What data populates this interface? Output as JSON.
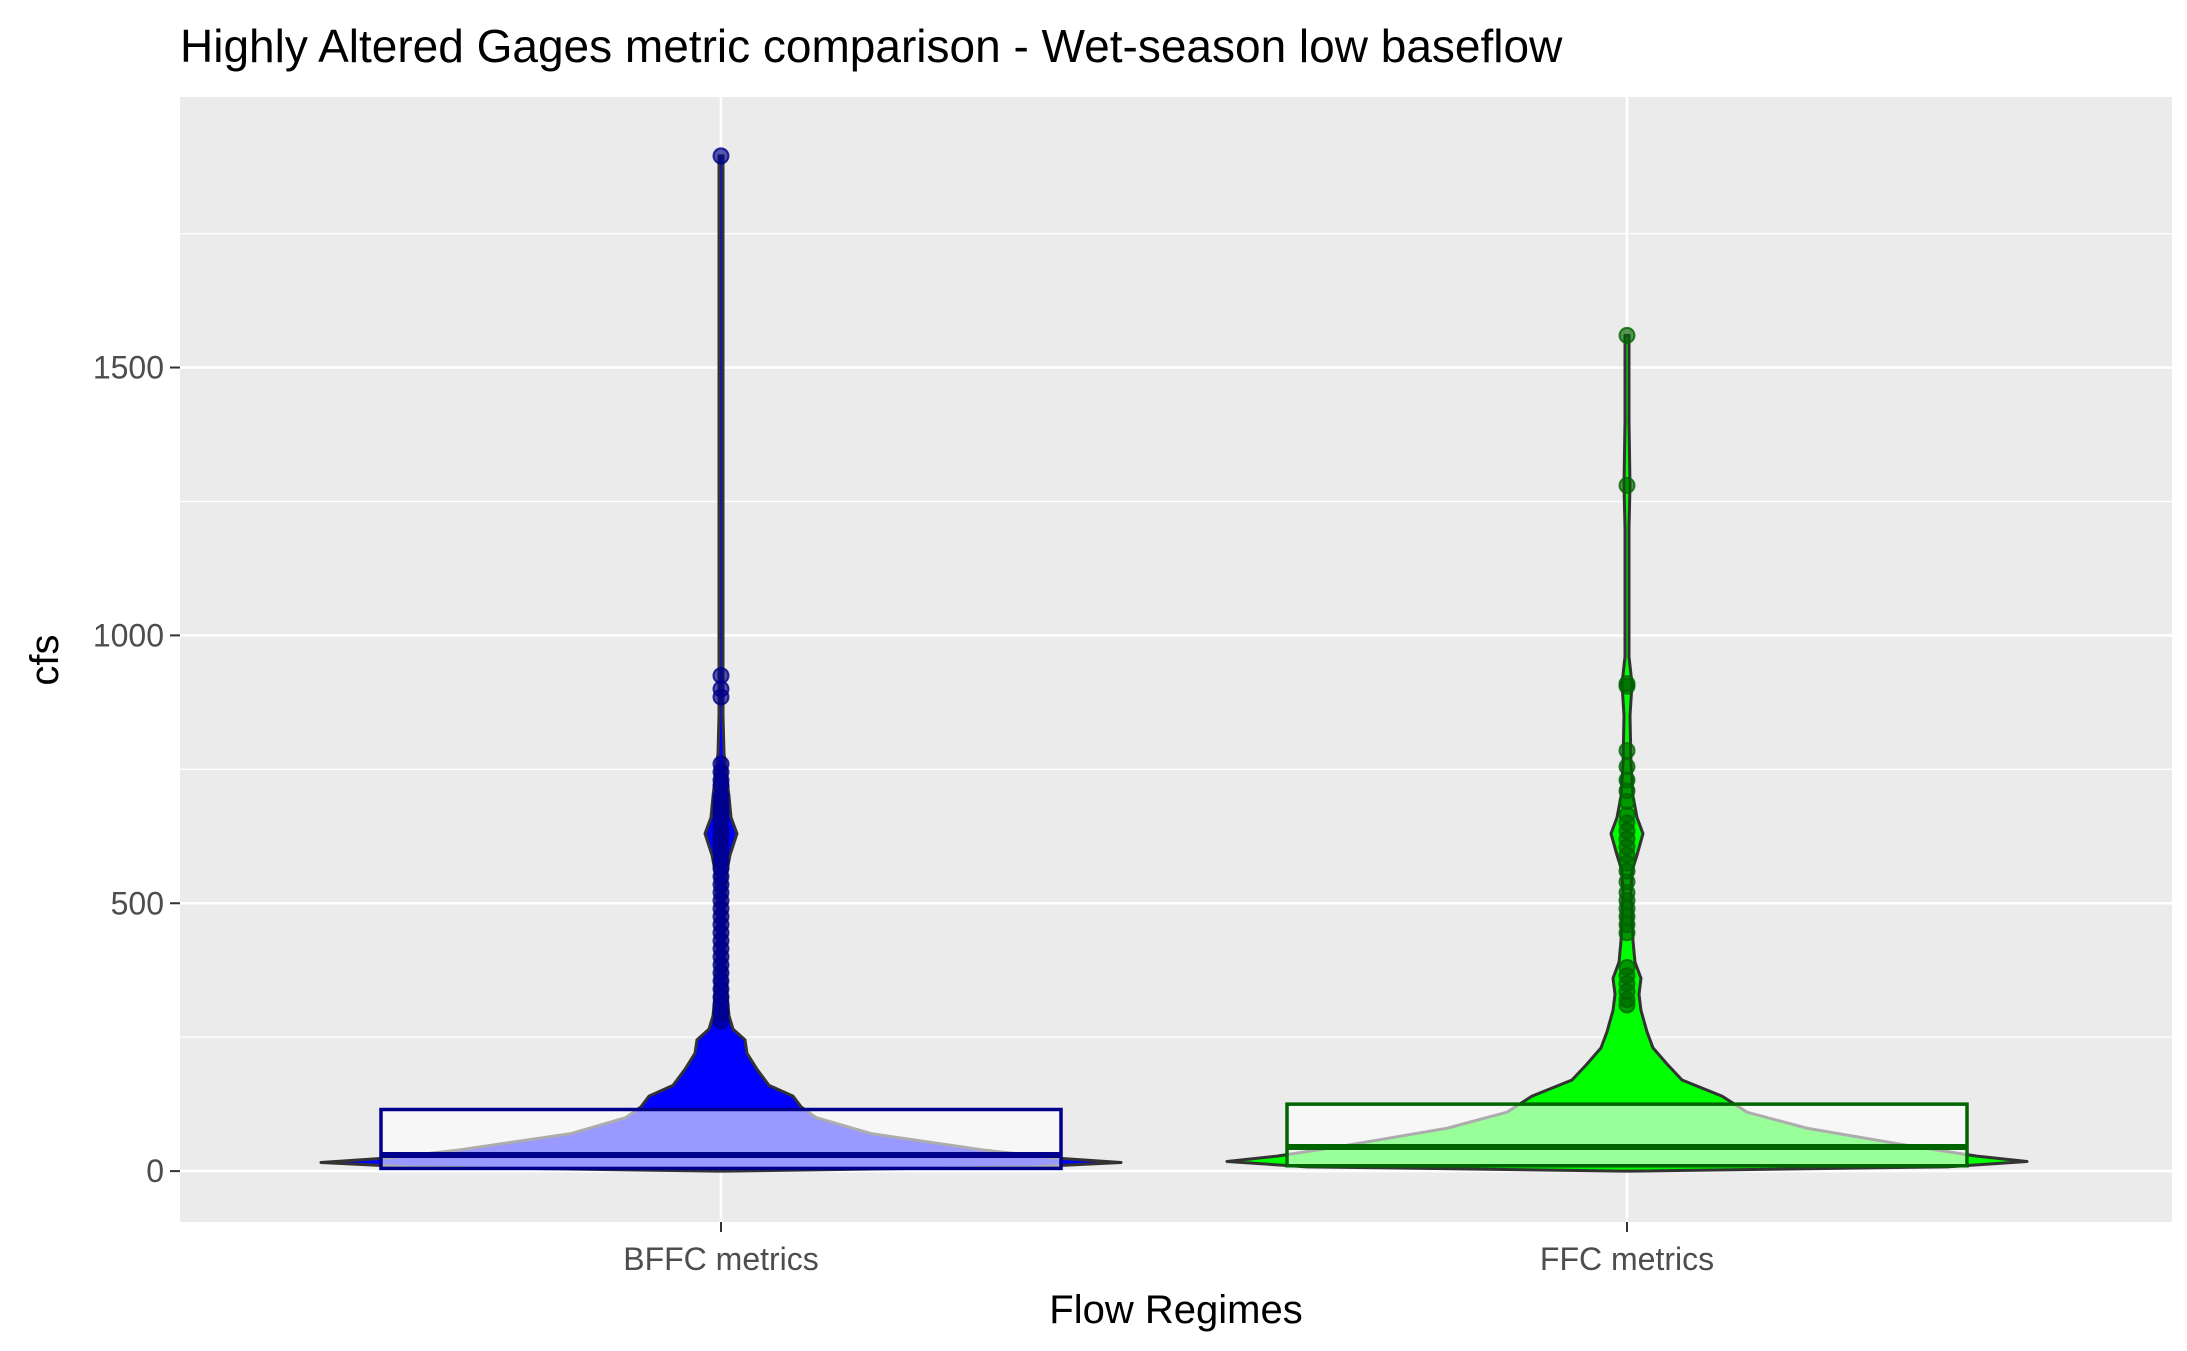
{
  "chart_data": {
    "type": "violin",
    "title": "Highly Altered Gages metric comparison - Wet-season low baseflow",
    "xlabel": "Flow Regimes",
    "ylabel": "cfs",
    "categories": [
      "BFFC metrics",
      "FFC metrics"
    ],
    "ylim": [
      -95,
      2005
    ],
    "yticks": [
      0,
      500,
      1000,
      1500
    ],
    "grid": true,
    "legend": "none",
    "colors": {
      "panel_background": "#ebebeb",
      "grid": "#ffffff",
      "BFFC metrics": "#0000ff",
      "BFFC metrics box fill": "#9999ff",
      "BFFC metrics box border": "#00008b",
      "FFC metrics": "#00ff00",
      "FFC metrics box fill": "#99ff99",
      "FFC metrics box border": "#006400"
    },
    "series": [
      {
        "category": "BFFC metrics",
        "max": 1895,
        "box": {
          "lower": 5,
          "median": 30,
          "upper": 115
        },
        "points": [
          1895,
          925,
          900,
          885,
          760,
          745,
          730,
          720,
          700,
          690,
          680,
          670,
          655,
          640,
          630,
          620,
          610,
          595,
          580,
          565,
          550,
          535,
          520,
          505,
          490,
          475,
          460,
          445,
          430,
          415,
          400,
          385,
          370,
          355,
          340,
          325,
          310,
          295,
          280
        ]
      },
      {
        "category": "FFC metrics",
        "max": 1560,
        "box": {
          "lower": 10,
          "median": 45,
          "upper": 125
        },
        "points": [
          1560,
          1280,
          910,
          905,
          785,
          755,
          730,
          710,
          690,
          665,
          650,
          635,
          620,
          605,
          590,
          575,
          560,
          540,
          520,
          505,
          490,
          475,
          460,
          445,
          380,
          365,
          350,
          335,
          320,
          310
        ]
      }
    ]
  }
}
